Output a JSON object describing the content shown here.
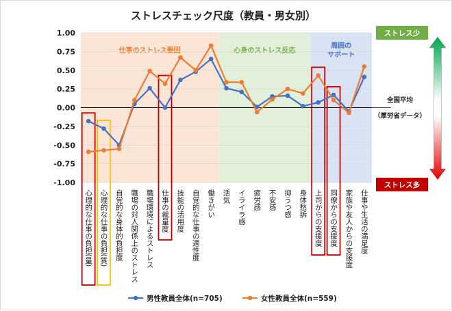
{
  "chart_data": {
    "type": "line",
    "title": "ストレスチェック尺度（教員・男女別）",
    "categories": [
      "心理的な仕事の負担(量)",
      "心理的な仕事の負担(質)",
      "自覚的な身体的負担度",
      "職場の対人関係上のストレス",
      "職場環境によるストレス",
      "仕事の裁量度",
      "技能の活用度",
      "自覚的な仕事の適性度",
      "働きがい",
      "活気",
      "イライラ感",
      "疲労感",
      "不安感",
      "抑うつ感",
      "身体愁訴",
      "上司からの支援度",
      "同僚からの支援度",
      "家族や友人からの支援度",
      "仕事や生活の満足度"
    ],
    "series": [
      {
        "name": "男性教員全体(n=705)",
        "color": "#4472C4",
        "values": [
          -0.18,
          -0.28,
          -0.5,
          0.05,
          0.26,
          0.0,
          0.37,
          0.48,
          0.65,
          0.26,
          0.21,
          0.01,
          0.15,
          0.16,
          0.02,
          0.07,
          0.17,
          -0.05,
          0.41
        ]
      },
      {
        "name": "女性教員全体(n=559)",
        "color": "#ED7D31",
        "values": [
          -0.59,
          -0.57,
          -0.55,
          0.1,
          0.49,
          0.32,
          0.67,
          0.5,
          0.83,
          0.34,
          0.34,
          -0.06,
          0.11,
          0.25,
          0.19,
          0.43,
          0.1,
          -0.07,
          0.55
        ]
      }
    ],
    "ylim": [
      -1.0,
      1.0
    ],
    "yticks": [
      "1.00",
      "0.75",
      "0.50",
      "0.25",
      "0.00",
      "-0.25",
      "-0.50",
      "-0.75",
      "-1.00"
    ],
    "ytick_values": [
      1.0,
      0.75,
      0.5,
      0.25,
      0.0,
      -0.25,
      -0.5,
      -0.75,
      -1.0
    ],
    "regions": [
      {
        "label": "仕事のストレス要因",
        "from": 0,
        "to": 8,
        "color": "#FBE5D6",
        "text_color": "#ED7D31"
      },
      {
        "label": "心身のストレス反応",
        "from": 9,
        "to": 14,
        "color": "#E2F0D9",
        "text_color": "#70AD47"
      },
      {
        "label": "周囲の\nサポート",
        "from": 15,
        "to": 18,
        "color": "#DAE3F3",
        "text_color": "#4472C4"
      }
    ],
    "highlights": [
      {
        "index": 0,
        "color": "#C00000"
      },
      {
        "index": 1,
        "color": "#FFC000"
      },
      {
        "index": 5,
        "color": "#C00000"
      },
      {
        "index": 15,
        "color": "#C00000"
      },
      {
        "index": 16,
        "color": "#C00000"
      }
    ],
    "side_labels": {
      "top": "ストレス少",
      "middle": "全国平均\n（厚労省データ）",
      "bottom": "ストレス多",
      "top_color": "#70AD47",
      "bottom_color": "#C00000"
    },
    "legend_position": "bottom"
  }
}
